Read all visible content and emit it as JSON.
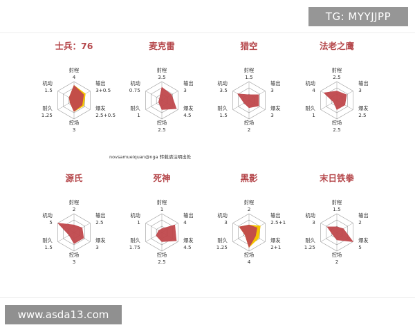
{
  "watermarks": {
    "tg": "TG: MYYJJPP",
    "site": "www.asda13.com"
  },
  "credit": "novsamueiquan@nga 转载请注明出处",
  "colors": {
    "fill": "#c0484c",
    "accent": "#f5c400",
    "grid": "#999999",
    "title": "#b5474b"
  },
  "chart_data": [
    {
      "type": "radar",
      "title": "士兵：76",
      "axes": [
        {
          "name": "射程",
          "label": "4",
          "value": 4
        },
        {
          "name": "输出",
          "label": "3+0.5",
          "value": 3,
          "bonus": 0.5
        },
        {
          "name": "爆发",
          "label": "2.5+0.5",
          "value": 2.5,
          "bonus": 0.5
        },
        {
          "name": "控场",
          "label": "3",
          "value": 3
        },
        {
          "name": "耐久",
          "label": "1.25",
          "value": 1.25
        },
        {
          "name": "机动",
          "label": "1.5",
          "value": 1.5
        }
      ]
    },
    {
      "type": "radar",
      "title": "麦克雷",
      "axes": [
        {
          "name": "射程",
          "label": "3.5",
          "value": 3.5
        },
        {
          "name": "输出",
          "label": "3",
          "value": 3
        },
        {
          "name": "爆发",
          "label": "4.5",
          "value": 4.5
        },
        {
          "name": "控场",
          "label": "2.5",
          "value": 2.5
        },
        {
          "name": "耐久",
          "label": "1",
          "value": 1
        },
        {
          "name": "机动",
          "label": "0.75",
          "value": 0.75
        }
      ]
    },
    {
      "type": "radar",
      "title": "猎空",
      "axes": [
        {
          "name": "射程",
          "label": "1.5",
          "value": 1.5
        },
        {
          "name": "输出",
          "label": "3",
          "value": 3
        },
        {
          "name": "爆发",
          "label": "3",
          "value": 3
        },
        {
          "name": "控场",
          "label": "2",
          "value": 2
        },
        {
          "name": "耐久",
          "label": "1.5",
          "value": 1.5
        },
        {
          "name": "机动",
          "label": "3.5",
          "value": 3.5
        }
      ]
    },
    {
      "type": "radar",
      "title": "法老之鹰",
      "axes": [
        {
          "name": "射程",
          "label": "2.5",
          "value": 2.5
        },
        {
          "name": "输出",
          "label": "3",
          "value": 3
        },
        {
          "name": "爆发",
          "label": "2.5",
          "value": 2.5
        },
        {
          "name": "控场",
          "label": "2.5",
          "value": 2.5
        },
        {
          "name": "耐久",
          "label": "1",
          "value": 1
        },
        {
          "name": "机动",
          "label": "4",
          "value": 4
        }
      ]
    },
    {
      "type": "radar",
      "title": "源氏",
      "axes": [
        {
          "name": "射程",
          "label": "2",
          "value": 2
        },
        {
          "name": "输出",
          "label": "2.5",
          "value": 2.5
        },
        {
          "name": "爆发",
          "label": "3",
          "value": 3
        },
        {
          "name": "控场",
          "label": "3",
          "value": 3
        },
        {
          "name": "耐久",
          "label": "1.5",
          "value": 1.5
        },
        {
          "name": "机动",
          "label": "5",
          "value": 5
        }
      ]
    },
    {
      "type": "radar",
      "title": "死神",
      "axes": [
        {
          "name": "射程",
          "label": "1",
          "value": 1
        },
        {
          "name": "输出",
          "label": "4",
          "value": 4
        },
        {
          "name": "爆发",
          "label": "4.5",
          "value": 4.5
        },
        {
          "name": "控场",
          "label": "2.5",
          "value": 2.5
        },
        {
          "name": "耐久",
          "label": "1.75",
          "value": 1.75
        },
        {
          "name": "机动",
          "label": "1",
          "value": 1
        }
      ]
    },
    {
      "type": "radar",
      "title": "黑影",
      "axes": [
        {
          "name": "射程",
          "label": "2",
          "value": 2
        },
        {
          "name": "输出",
          "label": "2.5+1",
          "value": 2.5,
          "bonus": 1
        },
        {
          "name": "爆发",
          "label": "2+1",
          "value": 2,
          "bonus": 1
        },
        {
          "name": "控场",
          "label": "4",
          "value": 4
        },
        {
          "name": "耐久",
          "label": "1.25",
          "value": 1.25
        },
        {
          "name": "机动",
          "label": "3",
          "value": 3
        }
      ]
    },
    {
      "type": "radar",
      "title": "末日铁拳",
      "axes": [
        {
          "name": "射程",
          "label": "1.5",
          "value": 1.5
        },
        {
          "name": "输出",
          "label": "2",
          "value": 2
        },
        {
          "name": "爆发",
          "label": "5",
          "value": 5
        },
        {
          "name": "控场",
          "label": "2",
          "value": 2
        },
        {
          "name": "耐久",
          "label": "1.25",
          "value": 1.25
        },
        {
          "name": "机动",
          "label": "3",
          "value": 3
        }
      ]
    }
  ]
}
